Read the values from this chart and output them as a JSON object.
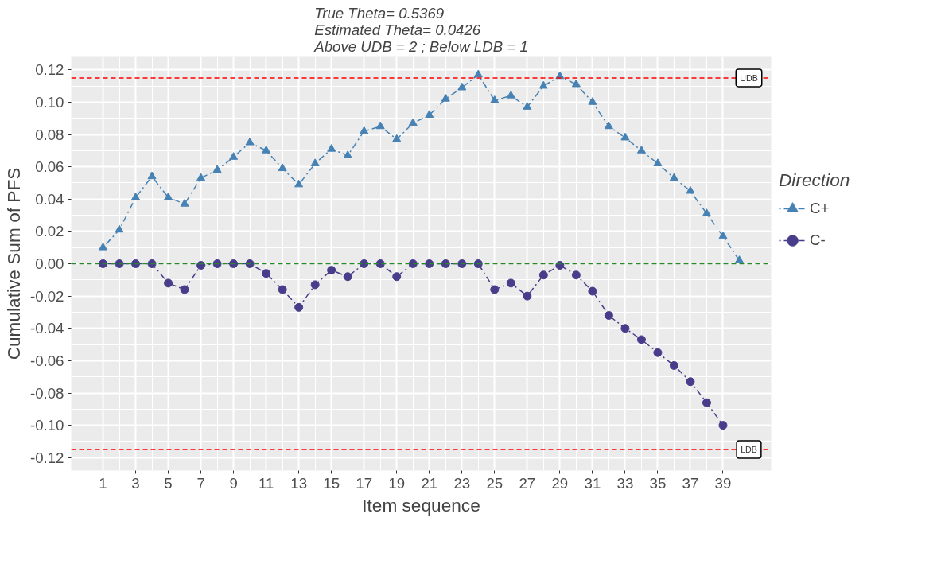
{
  "chart_data": {
    "type": "line",
    "title": "True Theta= 0.5369\nEstimated Theta= 0.0426\nAbove UDB = 2 ; Below LDB = 1",
    "xlabel": "Item sequence",
    "ylabel": "Cumulative Sum of PFS",
    "legend_title": "Direction",
    "x": [
      1,
      2,
      3,
      4,
      5,
      6,
      7,
      8,
      9,
      10,
      11,
      12,
      13,
      14,
      15,
      16,
      17,
      18,
      19,
      20,
      21,
      22,
      23,
      24,
      25,
      26,
      27,
      28,
      29,
      30,
      31,
      32,
      33,
      34,
      35,
      36,
      37,
      38,
      39,
      40
    ],
    "series": [
      {
        "name": "C+",
        "color": "#4682b4",
        "marker": "triangle",
        "values": [
          0.01,
          0.021,
          0.041,
          0.054,
          0.041,
          0.037,
          0.053,
          0.058,
          0.066,
          0.075,
          0.07,
          0.059,
          0.049,
          0.062,
          0.071,
          0.067,
          0.082,
          0.085,
          0.077,
          0.087,
          0.092,
          0.102,
          0.109,
          0.117,
          0.101,
          0.104,
          0.097,
          0.11,
          0.116,
          0.111,
          0.1,
          0.085,
          0.078,
          0.07,
          0.062,
          0.053,
          0.045,
          0.031,
          0.017,
          0.002
        ]
      },
      {
        "name": "C-",
        "color": "#483d8b",
        "marker": "circle",
        "values": [
          0,
          0,
          0,
          0,
          -0.012,
          -0.016,
          -0.001,
          0,
          0,
          0,
          -0.006,
          -0.016,
          -0.027,
          -0.013,
          -0.004,
          -0.008,
          0,
          0,
          -0.008,
          0,
          0,
          0,
          0,
          0,
          -0.016,
          -0.012,
          -0.02,
          -0.007,
          -0.001,
          -0.007,
          -0.017,
          -0.032,
          -0.04,
          -0.047,
          -0.055,
          -0.063,
          -0.073,
          -0.086,
          -0.1,
          null
        ]
      }
    ],
    "line_style": "dotdash",
    "xlim": [
      -0.95,
      41.95
    ],
    "ylim": [
      -0.128,
      0.128
    ],
    "xticks": [
      1,
      3,
      5,
      7,
      9,
      11,
      13,
      15,
      17,
      19,
      21,
      23,
      25,
      27,
      29,
      31,
      33,
      35,
      37,
      39
    ],
    "yticks": [
      {
        "value": -0.12,
        "label": "-0.12"
      },
      {
        "value": -0.1,
        "label": "-0.10"
      },
      {
        "value": -0.08,
        "label": "-0.08"
      },
      {
        "value": -0.06,
        "label": "-0.06"
      },
      {
        "value": -0.04,
        "label": "-0.04"
      },
      {
        "value": -0.02,
        "label": "-0.02"
      },
      {
        "value": 0,
        "label": "0.00"
      },
      {
        "value": 0.02,
        "label": "0.02"
      },
      {
        "value": 0.04,
        "label": "0.04"
      },
      {
        "value": 0.06,
        "label": "0.06"
      },
      {
        "value": 0.08,
        "label": "0.08"
      },
      {
        "value": 0.1,
        "label": "0.10"
      },
      {
        "value": 0.12,
        "label": "0.12"
      }
    ],
    "ref_lines": [
      {
        "axis": "y",
        "value": 0.115,
        "label": "UDB",
        "color": "#ff0000",
        "line_style": "dashed"
      },
      {
        "axis": "y",
        "value": 0,
        "label": null,
        "color": "#228b22",
        "line_style": "dashed"
      },
      {
        "axis": "y",
        "value": -0.115,
        "label": "LDB",
        "color": "#ff0000",
        "line_style": "dashed"
      }
    ],
    "grid": true,
    "legend": "right"
  }
}
